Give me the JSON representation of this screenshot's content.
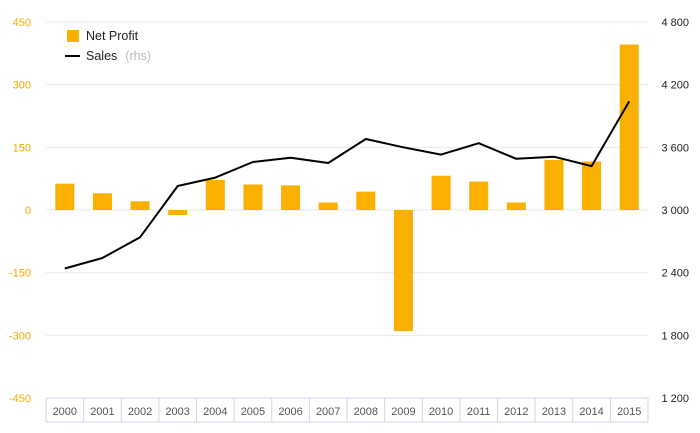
{
  "chart_data": {
    "type": "bar+line",
    "categories": [
      "2000",
      "2001",
      "2002",
      "2003",
      "2004",
      "2005",
      "2006",
      "2007",
      "2008",
      "2009",
      "2010",
      "2011",
      "2012",
      "2013",
      "2014",
      "2015"
    ],
    "series": [
      {
        "name": "Net Profit",
        "type": "bar",
        "axis": "left",
        "color": "#f9b000",
        "values": [
          63,
          40,
          21,
          -12,
          72,
          61,
          59,
          18,
          44,
          -290,
          82,
          68,
          18,
          120,
          116,
          396
        ]
      },
      {
        "name": "Sales",
        "name_suffix": "(rhs)",
        "type": "line",
        "axis": "right",
        "color": "#000000",
        "values": [
          2440,
          2540,
          2740,
          3230,
          3310,
          3460,
          3500,
          3450,
          3680,
          3600,
          3530,
          3640,
          3490,
          3510,
          3420,
          4040
        ]
      }
    ],
    "y_left": {
      "range": [
        -450,
        450
      ],
      "ticks": [
        450,
        300,
        150,
        0,
        -150,
        -300,
        -450
      ],
      "tick_labels": [
        "450",
        "300",
        "150",
        "0",
        "-150",
        "-300",
        "-450"
      ]
    },
    "y_right": {
      "range": [
        1200,
        4800
      ],
      "ticks": [
        4800,
        4200,
        3600,
        3000,
        2400,
        1800,
        1200
      ],
      "tick_labels": [
        "4 800",
        "4 200",
        "3 600",
        "3 000",
        "2 400",
        "1 800",
        "1 200"
      ]
    },
    "grid": true,
    "legend_position": "top-left"
  }
}
